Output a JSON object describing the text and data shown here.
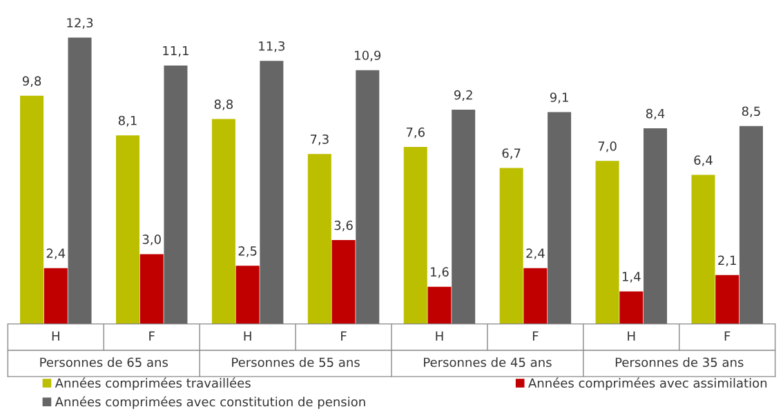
{
  "chart_data": {
    "type": "bar",
    "categories": [
      "H",
      "F",
      "H",
      "F",
      "H",
      "F",
      "H",
      "F"
    ],
    "annotations": [
      "Personnes de 65 ans",
      "Personnes de 55 ans",
      "Personnes de 45 ans",
      "Personnes de 35 ans"
    ],
    "series": [
      {
        "name": "Années comprimées travaillées",
        "color": "#bcbf00",
        "values": [
          9.8,
          8.1,
          8.8,
          7.3,
          7.6,
          6.7,
          7.0,
          6.4
        ],
        "value_labels": [
          "9,8",
          "8,1",
          "8,8",
          "7,3",
          "7,6",
          "6,7",
          "7,0",
          "6,4"
        ]
      },
      {
        "name": "Années comprimées avec assimilation",
        "color": "#c00000",
        "values": [
          2.4,
          3.0,
          2.5,
          3.6,
          1.6,
          2.4,
          1.4,
          2.1
        ],
        "value_labels": [
          "2,4",
          "3,0",
          "2,5",
          "3,6",
          "1,6",
          "2,4",
          "1,4",
          "2,1"
        ]
      },
      {
        "name": "Années comprimées avec constitution de pension",
        "color": "#666666",
        "values": [
          12.3,
          11.1,
          11.3,
          10.9,
          9.2,
          9.1,
          8.4,
          8.5
        ],
        "value_labels": [
          "12,3",
          "11,1",
          "11,3",
          "10,9",
          "9,2",
          "9,1",
          "8,4",
          "8,5"
        ]
      }
    ],
    "legend": "bottom"
  }
}
